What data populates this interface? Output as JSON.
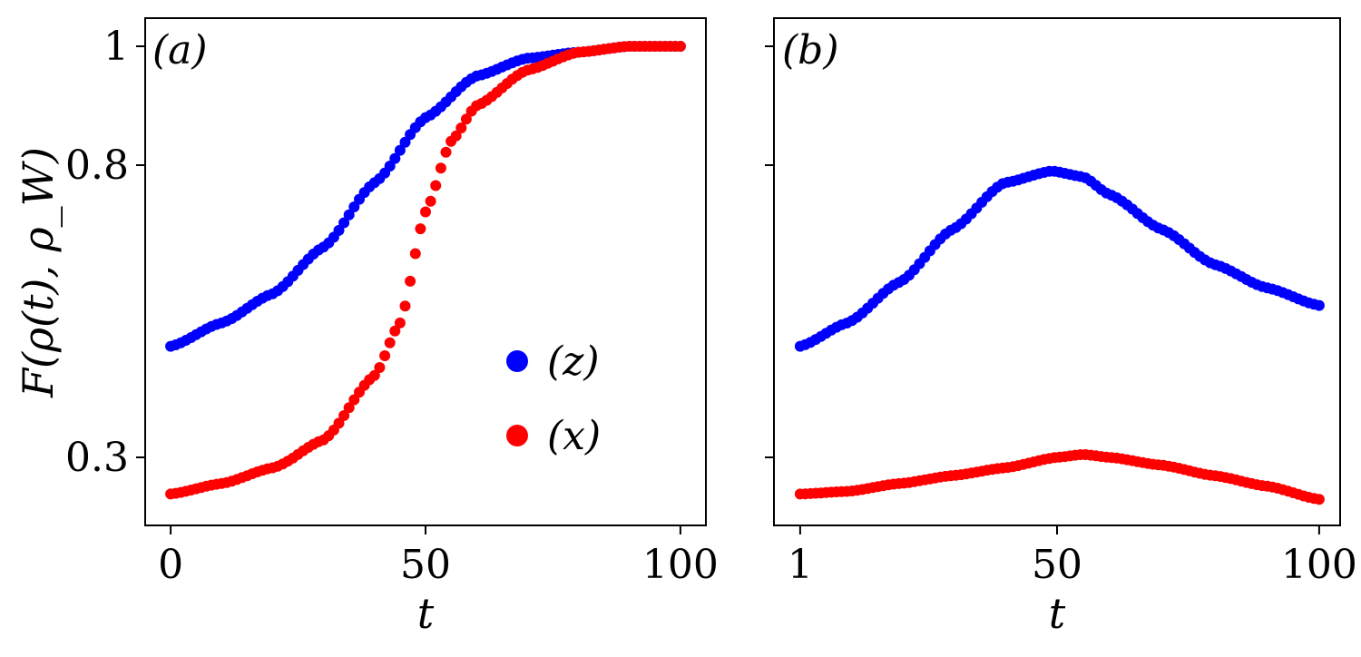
{
  "chart_data": [
    {
      "type": "scatter",
      "panel_label": "(a)",
      "xlabel": "t",
      "ylabel": "F(ρ(t), ρ_W)",
      "xlim": [
        -5,
        105
      ],
      "ylim": [
        0.17,
        1.03
      ],
      "xticks": [
        0,
        50,
        100
      ],
      "xtick_labels": [
        "0",
        "50",
        "100"
      ],
      "yticks": [
        0.3,
        0.8,
        1.0
      ],
      "ytick_labels": [
        "0.3",
        "0.8",
        "1"
      ],
      "grid": false,
      "legend_position": "lower-right",
      "series": [
        {
          "name": "(z)",
          "color": "#0000ff",
          "x": [
            0,
            10,
            20,
            30,
            40,
            50,
            60,
            70,
            80,
            90,
            100
          ],
          "y": [
            0.49,
            0.53,
            0.58,
            0.66,
            0.77,
            0.88,
            0.95,
            0.98,
            0.99,
            1.0,
            1.0
          ]
        },
        {
          "name": "(x)",
          "color": "#ff0000",
          "x": [
            0,
            10,
            20,
            30,
            40,
            45,
            50,
            55,
            60,
            70,
            80,
            90,
            100
          ],
          "y": [
            0.23,
            0.25,
            0.28,
            0.33,
            0.44,
            0.53,
            0.72,
            0.84,
            0.9,
            0.96,
            0.99,
            1.0,
            1.0
          ]
        }
      ]
    },
    {
      "type": "scatter",
      "panel_label": "(b)",
      "xlabel": "t",
      "xlim": [
        -4,
        104
      ],
      "ylim": [
        0.17,
        1.03
      ],
      "xticks": [
        1,
        50,
        100
      ],
      "xtick_labels": [
        "1",
        "50",
        "100"
      ],
      "yticks": [
        0.3,
        0.8,
        1.0
      ],
      "ytick_labels": [
        "",
        "",
        ""
      ],
      "grid": false,
      "series": [
        {
          "name": "(z)",
          "color": "#0000ff",
          "x": [
            1,
            10,
            20,
            30,
            40,
            49,
            55,
            60,
            70,
            80,
            90,
            100
          ],
          "y": [
            0.49,
            0.53,
            0.6,
            0.69,
            0.77,
            0.79,
            0.78,
            0.75,
            0.69,
            0.63,
            0.59,
            0.56
          ]
        },
        {
          "name": "(x)",
          "color": "#ff0000",
          "x": [
            1,
            10,
            20,
            30,
            40,
            50,
            55,
            60,
            70,
            80,
            90,
            100
          ],
          "y": [
            0.23,
            0.235,
            0.25,
            0.265,
            0.28,
            0.3,
            0.305,
            0.3,
            0.285,
            0.265,
            0.245,
            0.22
          ]
        }
      ]
    }
  ]
}
